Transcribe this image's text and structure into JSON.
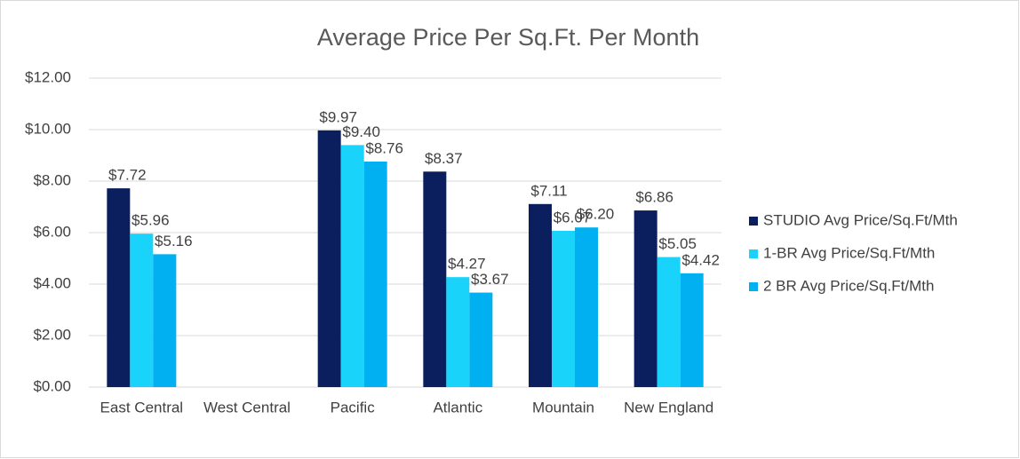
{
  "chart_data": {
    "type": "bar",
    "title": "Average Price Per Sq.Ft. Per Month",
    "categories": [
      "East Central",
      "West Central",
      "Pacific",
      "Atlantic",
      "Mountain",
      "New England"
    ],
    "series": [
      {
        "name": "STUDIO Avg Price/Sq.Ft/Mth",
        "color": "#0b1f5e",
        "values": [
          7.72,
          null,
          9.97,
          8.37,
          7.11,
          6.86
        ],
        "value_labels": [
          "$7.72",
          null,
          "$9.97",
          "$8.37",
          "$7.11",
          "$6.86"
        ]
      },
      {
        "name": "1-BR Avg Price/Sq.Ft/Mth",
        "color": "#19d3fb",
        "values": [
          5.96,
          null,
          9.4,
          4.27,
          6.07,
          5.05
        ],
        "value_labels": [
          "$5.96",
          null,
          "$9.40",
          "$4.27",
          "$6.07",
          "$5.05"
        ]
      },
      {
        "name": "2 BR Avg Price/Sq.Ft/Mth",
        "color": "#00b0f0",
        "values": [
          5.16,
          null,
          8.76,
          3.67,
          6.2,
          4.42
        ],
        "value_labels": [
          "$5.16",
          null,
          "$8.76",
          "$3.67",
          "$6.20",
          "$4.42"
        ]
      }
    ],
    "ylim": [
      0,
      12
    ],
    "yticks": [
      {
        "value": 0,
        "label": "$0.00"
      },
      {
        "value": 2,
        "label": "$2.00"
      },
      {
        "value": 4,
        "label": "$4.00"
      },
      {
        "value": 6,
        "label": "$6.00"
      },
      {
        "value": 8,
        "label": "$8.00"
      },
      {
        "value": 10,
        "label": "$10.00"
      },
      {
        "value": 12,
        "label": "$12.00"
      }
    ],
    "grid": true,
    "legend": "right"
  }
}
